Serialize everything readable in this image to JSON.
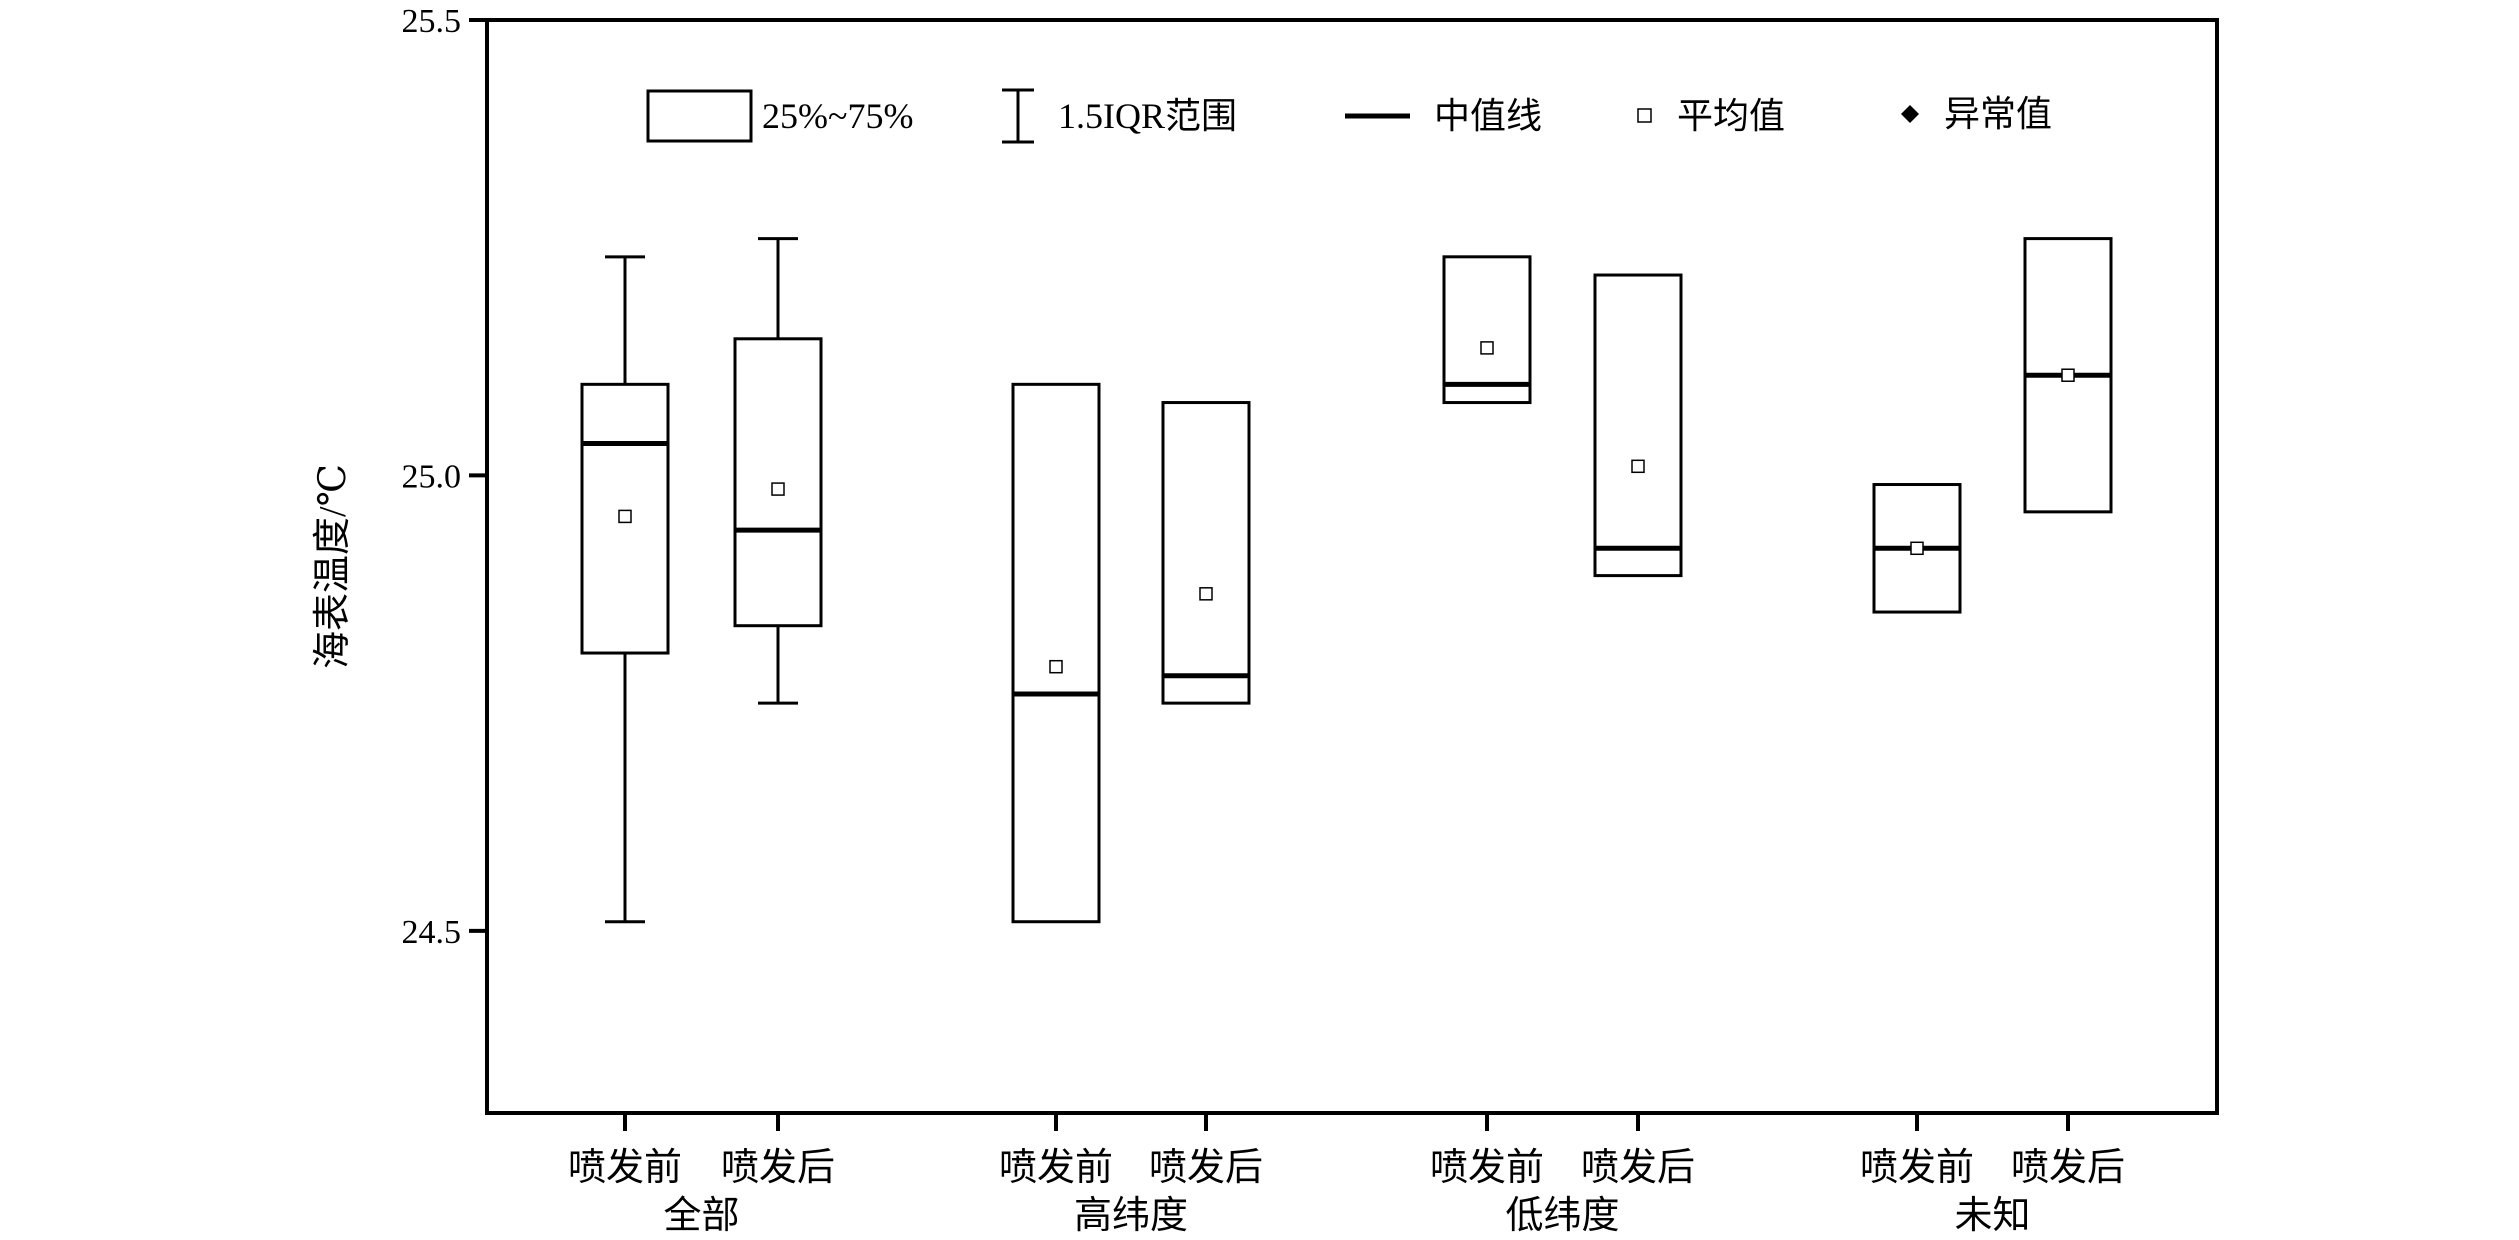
{
  "chart_data": {
    "type": "box",
    "ylabel": "海表温度/℃",
    "ylim": [
      24.3,
      25.5
    ],
    "yticks": [
      "24.5",
      "25.0",
      "25.5"
    ],
    "groups": [
      {
        "name": "全部",
        "series": [
          {
            "label": "喷发前",
            "q1": 24.805,
            "q3": 25.1,
            "median": 25.035,
            "mean": 24.955,
            "whisker_low": 24.51,
            "whisker_high": 25.24
          },
          {
            "label": "喷发后",
            "q1": 24.835,
            "q3": 25.15,
            "median": 24.94,
            "mean": 24.985,
            "whisker_low": 24.75,
            "whisker_high": 25.26
          }
        ]
      },
      {
        "name": "高纬度",
        "series": [
          {
            "label": "喷发前",
            "q1": 24.51,
            "q3": 25.1,
            "median": 24.76,
            "mean": 24.79
          },
          {
            "label": "喷发后",
            "q1": 24.75,
            "q3": 25.08,
            "median": 24.78,
            "mean": 24.87
          }
        ]
      },
      {
        "name": "低纬度",
        "series": [
          {
            "label": "喷发前",
            "q1": 25.08,
            "q3": 25.24,
            "median": 25.1,
            "mean": 25.14
          },
          {
            "label": "喷发后",
            "q1": 24.89,
            "q3": 25.22,
            "median": 24.92,
            "mean": 25.01
          }
        ]
      },
      {
        "name": "未知",
        "series": [
          {
            "label": "喷发前",
            "q1": 24.85,
            "q3": 24.99,
            "median": 24.92,
            "mean": 24.92
          },
          {
            "label": "喷发后",
            "q1": 24.96,
            "q3": 25.26,
            "median": 25.11,
            "mean": 25.11
          }
        ]
      }
    ],
    "legend": {
      "placement": "top",
      "items": [
        {
          "key": "box",
          "label": "25%~75%"
        },
        {
          "key": "whisker",
          "label": "1.5IQR范围"
        },
        {
          "key": "median",
          "label": "中值线"
        },
        {
          "key": "mean",
          "label": "平均值"
        },
        {
          "key": "outlier",
          "label": "异常值"
        }
      ]
    },
    "colors": {
      "stroke": "#000000",
      "background": "#ffffff"
    }
  }
}
